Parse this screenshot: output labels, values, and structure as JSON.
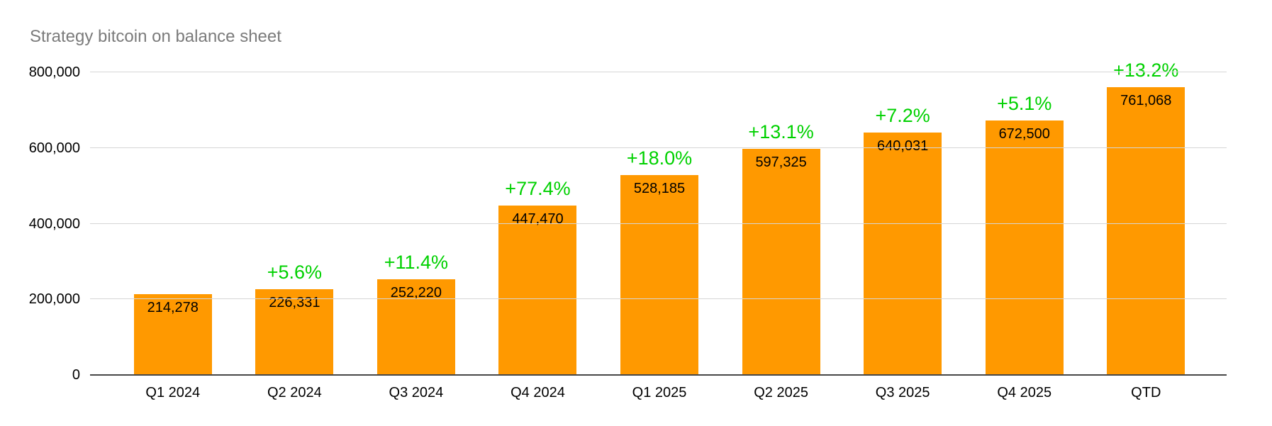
{
  "chart_data": {
    "type": "bar",
    "title": "Strategy bitcoin on balance sheet",
    "categories": [
      "Q1 2024",
      "Q2 2024",
      "Q3 2024",
      "Q4 2024",
      "Q1 2025",
      "Q2 2025",
      "Q3 2025",
      "Q4 2025",
      "QTD"
    ],
    "values": [
      214278,
      226331,
      252220,
      447470,
      528185,
      597325,
      640031,
      672500,
      761068
    ],
    "bar_labels": [
      "214,278",
      "226,331",
      "252,220",
      "447,470",
      "528,185",
      "597,325",
      "640,031",
      "672,500",
      "761,068"
    ],
    "pct_change_labels": [
      "",
      "+5.6%",
      "+11.4%",
      "+77.4%",
      "+18.0%",
      "+13.1%",
      "+7.2%",
      "+5.1%",
      "+13.2%"
    ],
    "xlabel": "",
    "ylabel": "",
    "ylim": [
      0,
      800000
    ],
    "yticks": [
      {
        "value": 0,
        "label": "0"
      },
      {
        "value": 200000,
        "label": "200,000"
      },
      {
        "value": 400000,
        "label": "400,000"
      },
      {
        "value": 600000,
        "label": "600,000"
      },
      {
        "value": 800000,
        "label": "800,000"
      }
    ],
    "grid": true,
    "legend": "none",
    "colors": {
      "bar": "#FF9900",
      "pct_label": "#00D100",
      "value_label": "#000000",
      "axis_label": "#000000",
      "title": "#7B7B7B",
      "gridline": "#D6D6D6",
      "axis_line": "#474747",
      "background": "#FFFFFF"
    }
  }
}
